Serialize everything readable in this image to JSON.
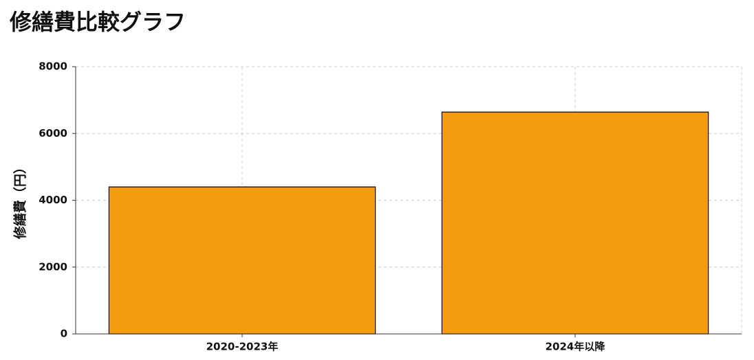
{
  "chart_data": {
    "type": "bar",
    "title": "修繕費比較グラフ",
    "y_label": "修繕費（円）",
    "categories": [
      "2020-2023年",
      "2024年以降"
    ],
    "values": [
      4400,
      6640
    ],
    "color": "#f39c12",
    "ylim": [
      0,
      8000
    ],
    "yticks": [
      0,
      2000,
      4000,
      6000,
      8000
    ],
    "grid": true
  }
}
